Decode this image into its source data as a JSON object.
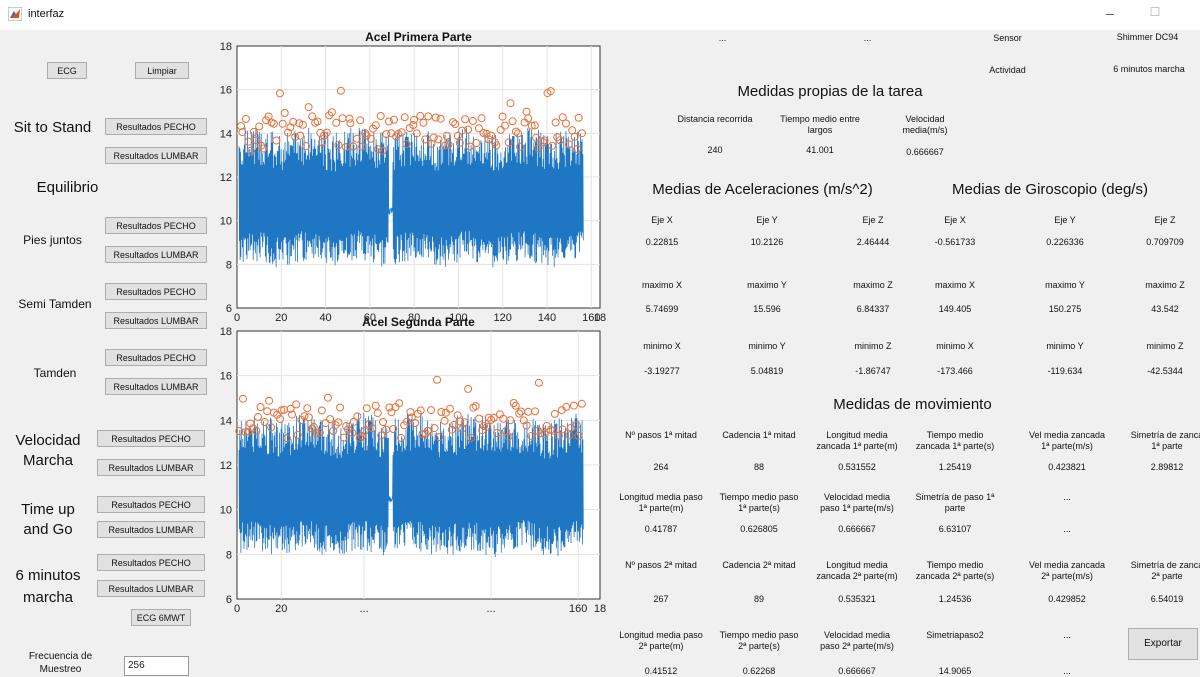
{
  "window": {
    "title": "interfaz",
    "minimize": "–",
    "maximize": "☐"
  },
  "left": {
    "ecg_btn": "ECG",
    "limpiar_btn": "Limpiar",
    "sit_stand": "Sit to Stand",
    "equilibrio": "Equilibrio",
    "pies_juntos": "Pies juntos",
    "semi_tamden": "Semi Tamden",
    "tamden": "Tamden",
    "velocidad_1": "Velocidad",
    "velocidad_2": "Marcha",
    "time_up_1": "Time up",
    "time_up_2": "and Go",
    "seis_min_1": "6 minutos",
    "seis_min_2": "marcha",
    "pecho": "Resultados PECHO",
    "lumbar": "Resultados LUMBAR",
    "ecg6": "ECG 6MWT",
    "freq_1": "Frecuencia de",
    "freq_2": "Muestreo",
    "freq_value": "256"
  },
  "plots": {
    "top": {
      "title": "Acel Primera Parte",
      "yticks": [
        "18",
        "16",
        "14",
        "12",
        "10",
        "8",
        "6"
      ],
      "xticks": [
        "0",
        "20",
        "40",
        "60",
        "80",
        "100",
        "120",
        "140",
        "160",
        "18"
      ]
    },
    "bottom": {
      "title": "Acel Segunda Parte",
      "yticks": [
        "18",
        "16",
        "14",
        "12",
        "10",
        "8",
        "6"
      ],
      "xticks": [
        "0",
        "20",
        "...",
        "...",
        "160",
        "18"
      ],
      "below": [
        "...",
        "..."
      ]
    }
  },
  "header": {
    "dots1": "...",
    "dots2": "...",
    "sensor_label": "Sensor",
    "sensor_value": "Shimmer DC94",
    "actividad_label": "Actividad",
    "actividad_value": "6 minutos marcha"
  },
  "tarea": {
    "title": "Medidas propias de la tarea",
    "labels": [
      "Distancia recorrida",
      [
        "Tiempo medio entre",
        "largos"
      ],
      [
        "Velocidad",
        "media(m/s)"
      ]
    ],
    "values": [
      "240",
      "41.001",
      "0.666667"
    ]
  },
  "acel": {
    "title": "Medias de Aceleraciones (m/s^2)",
    "rows": [
      [
        "Eje X",
        "Eje Y",
        "Eje  Z"
      ],
      [
        "0.22815",
        "10.2126",
        "2.46444"
      ],
      [
        "maximo X",
        "maximo Y",
        "maximo Z"
      ],
      [
        "5.74699",
        "15.596",
        "6.84337"
      ],
      [
        "minimo X",
        "minimo Y",
        "minimo Z"
      ],
      [
        "-3.19277",
        "5.04819",
        "-1.86747"
      ]
    ]
  },
  "giro": {
    "title": "Medias de Giroscopio (deg/s)",
    "rows": [
      [
        "Eje X",
        "Eje Y",
        "Eje Z"
      ],
      [
        "-0.561733",
        "0.226336",
        "0.709709"
      ],
      [
        "maximo X",
        "maximo Y",
        "maximo Z"
      ],
      [
        "149.405",
        "150.275",
        "43.542"
      ],
      [
        "minimo X",
        "minimo Y",
        "minimo Z"
      ],
      [
        "-173.466",
        "-119.634",
        "-42.5344"
      ]
    ]
  },
  "mov": {
    "title": "Medidas de movimiento",
    "r1_labels": [
      [
        "Nº pasos 1ª mitad"
      ],
      [
        "Cadencia 1ª mitad"
      ],
      [
        "Longitud media",
        "zancada 1ª parte(m)"
      ],
      [
        "Tiempo medio",
        "zancada 1ª parte(s)"
      ],
      [
        "Vel media zancada",
        "1ª parte(m/s)"
      ],
      [
        "Simetría de zanca",
        "1ª parte"
      ]
    ],
    "r1_values": [
      "264",
      "88",
      "0.531552",
      "1.25419",
      "0.423821",
      "2.89812"
    ],
    "r2_labels": [
      [
        "Longitud media paso",
        "1ª parte(m)"
      ],
      [
        "Tiempo medio paso",
        "1ª parte(s)"
      ],
      [
        "Velocidad media",
        "paso 1ª parte(m/s)"
      ],
      [
        "Simetría de paso 1ª",
        "parte"
      ],
      [
        "..."
      ]
    ],
    "r2_values": [
      "0.41787",
      "0.626805",
      "0.666667",
      "6.63107",
      "..."
    ],
    "r3_labels": [
      [
        "Nº pasos 2ª mitad"
      ],
      [
        "Cadencia 2ª mitad"
      ],
      [
        "Longitud media",
        "zancada 2ª parte(m)"
      ],
      [
        "Tiempo medio",
        "zancada 2ª parte(s)"
      ],
      [
        "Vel media zancada",
        "2ª parte(m/s)"
      ],
      [
        "Simetría de zanca",
        "2ª parte"
      ]
    ],
    "r3_values": [
      "267",
      "89",
      "0.535321",
      "1.24536",
      "0.429852",
      "6.54019"
    ],
    "r4_labels": [
      [
        "Longitud media paso",
        "2ª parte(m)"
      ],
      [
        "Tiempo medio paso",
        "2ª parte(s)"
      ],
      [
        "Velocidad media",
        "paso 2ª parte(m/s)"
      ],
      [
        "Simetriapaso2"
      ],
      [
        "..."
      ]
    ],
    "r4_values": [
      "0.41512",
      "0.62268",
      "0.666667",
      "14.9065",
      "..."
    ]
  },
  "exportar": "Exportar",
  "colors": {
    "signal": "#1f77c4",
    "peaks": "#e8703a"
  }
}
